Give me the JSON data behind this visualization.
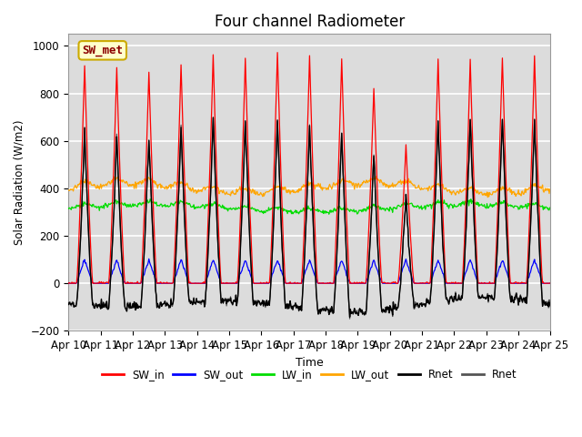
{
  "title": "Four channel Radiometer",
  "xlabel": "Time",
  "ylabel": "Solar Radiation (W/m2)",
  "annotation": "SW_met",
  "ylim": [
    -200,
    1050
  ],
  "xlim": [
    0,
    360
  ],
  "x_tick_labels": [
    "Apr 10",
    "Apr 11",
    "Apr 12",
    "Apr 13",
    "Apr 14",
    "Apr 15",
    "Apr 16",
    "Apr 17",
    "Apr 18",
    "Apr 19",
    "Apr 20",
    "Apr 21",
    "Apr 22",
    "Apr 23",
    "Apr 24",
    "Apr 25"
  ],
  "x_tick_positions": [
    0,
    24,
    48,
    72,
    96,
    120,
    144,
    168,
    192,
    216,
    240,
    264,
    288,
    312,
    336,
    360
  ],
  "y_ticks": [
    -200,
    0,
    200,
    400,
    600,
    800,
    1000
  ],
  "colors": {
    "SW_in": "#ff0000",
    "SW_out": "#0000ff",
    "LW_in": "#00dd00",
    "LW_out": "#ffa500",
    "Rnet_black": "#000000",
    "Rnet_dark": "#555555"
  },
  "background_color": "#dcdcdc",
  "grid_color": "#ffffff",
  "title_fontsize": 12,
  "legend_labels": [
    "SW_in",
    "SW_out",
    "LW_in",
    "LW_out",
    "Rnet",
    "Rnet"
  ],
  "legend_colors": [
    "#ff0000",
    "#0000ff",
    "#00dd00",
    "#ffa500",
    "#000000",
    "#555555"
  ]
}
